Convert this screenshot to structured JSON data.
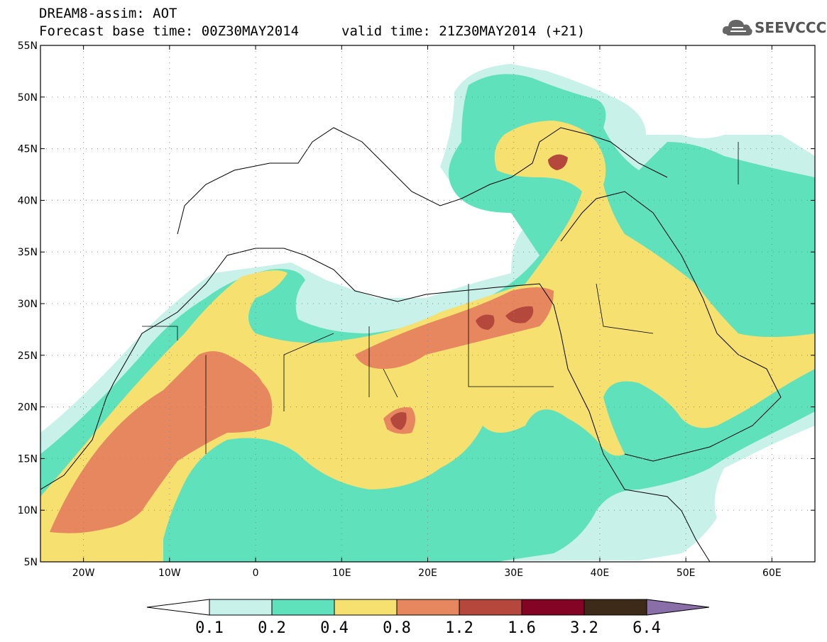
{
  "header": {
    "title": "DREAM8-assim: AOT",
    "base_time": "Forecast base time: 00Z30MAY2014",
    "valid_time": "valid time: 21Z30MAY2014 (+21)",
    "logo_text": "SEEVCCC"
  },
  "map": {
    "lon_range": [
      -25,
      65
    ],
    "lat_range": [
      5,
      55
    ],
    "lat_ticks": [
      "55N",
      "50N",
      "45N",
      "40N",
      "35N",
      "30N",
      "25N",
      "20N",
      "15N",
      "10N",
      "5N"
    ],
    "lon_ticks": [
      "20W",
      "10W",
      "0",
      "10E",
      "20E",
      "30E",
      "40E",
      "50E",
      "60E"
    ],
    "gridlines": true
  },
  "colorbar": {
    "labels": [
      "0.1",
      "0.2",
      "0.4",
      "0.8",
      "1.2",
      "1.6",
      "3.2",
      "6.4"
    ],
    "colors": [
      "#c8f1ea",
      "#5fe1bb",
      "#f5e070",
      "#e6875f",
      "#b5483c",
      "#830424",
      "#3d2a18",
      "#8a6ea8"
    ],
    "below_color": "#ffffff"
  },
  "fields": {
    "layers": [
      {
        "level": "0.1",
        "color": "#c8f1ea"
      },
      {
        "level": "0.2",
        "color": "#5fe1bb"
      },
      {
        "level": "0.4",
        "color": "#f5e070"
      },
      {
        "level": "0.8",
        "color": "#e6875f"
      },
      {
        "level": "1.2",
        "color": "#b5483c"
      }
    ]
  }
}
